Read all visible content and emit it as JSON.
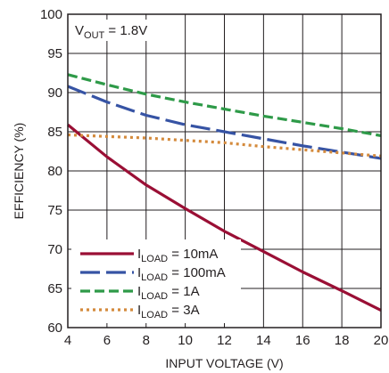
{
  "chart_data": {
    "type": "line",
    "title": "",
    "xlabel": "INPUT VOLTAGE (V)",
    "ylabel": "EFFICIENCY (%)",
    "xlim": [
      4,
      20
    ],
    "ylim": [
      60,
      100
    ],
    "xticks": [
      4,
      6,
      8,
      10,
      12,
      14,
      16,
      18,
      20
    ],
    "yticks": [
      60,
      65,
      70,
      75,
      80,
      85,
      90,
      95,
      100
    ],
    "grid": true,
    "legend_position": "bottom-left",
    "annotation": {
      "main": "V",
      "sub": "OUT",
      "rest": " = 1.8V"
    },
    "series": [
      {
        "name": "ILOAD = 10mA",
        "label_main": "I",
        "label_sub": "LOAD",
        "label_rest": " = 10mA",
        "color": "#9a0f35",
        "dash": "solid",
        "x": [
          4,
          6,
          8,
          10,
          12,
          14,
          16,
          18,
          20
        ],
        "y": [
          85.9,
          81.8,
          78.2,
          75.2,
          72.3,
          69.7,
          67.1,
          64.7,
          62.2
        ]
      },
      {
        "name": "ILOAD = 100mA",
        "label_main": "I",
        "label_sub": "LOAD",
        "label_rest": " = 100mA",
        "color": "#3653a4",
        "dash": "longdash",
        "x": [
          4,
          6,
          8,
          10,
          12,
          14,
          16,
          18,
          20
        ],
        "y": [
          90.8,
          88.8,
          87.1,
          85.9,
          85.0,
          84.1,
          83.2,
          82.4,
          81.6
        ]
      },
      {
        "name": "ILOAD = 1A",
        "label_main": "I",
        "label_sub": "LOAD",
        "label_rest": " = 1A",
        "color": "#2e9a48",
        "dash": "dash",
        "x": [
          4,
          6,
          8,
          10,
          12,
          14,
          16,
          18,
          20
        ],
        "y": [
          92.3,
          91.0,
          89.8,
          88.8,
          87.9,
          87.0,
          86.2,
          85.4,
          84.5
        ]
      },
      {
        "name": "ILOAD = 3A",
        "label_main": "I",
        "label_sub": "LOAD",
        "label_rest": " = 3A",
        "color": "#d48a3c",
        "dash": "dot",
        "x": [
          4,
          6,
          8,
          10,
          12,
          14,
          16,
          18,
          20
        ],
        "y": [
          84.6,
          84.4,
          84.2,
          83.9,
          83.6,
          83.1,
          82.7,
          82.3,
          81.9
        ]
      }
    ]
  }
}
